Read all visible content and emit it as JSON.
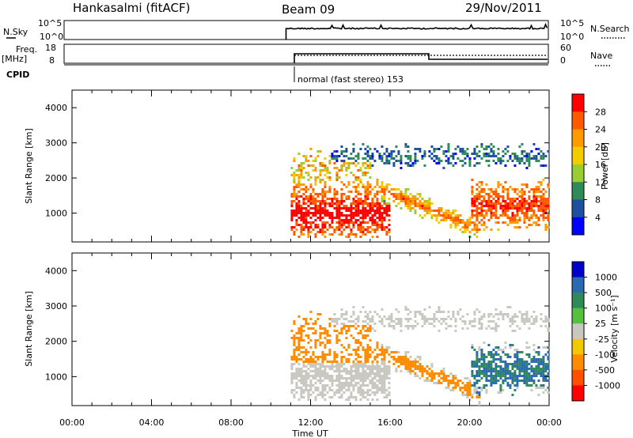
{
  "header": {
    "station": "Hankasalmi (fitACF)",
    "beam": "Beam 09",
    "date": "29/Nov/2011"
  },
  "strip_nsky": {
    "label": "N.Sky",
    "left_ticks": [
      "10^5",
      "10^0"
    ],
    "right_ticks": [
      "10^5",
      "10^0"
    ],
    "right_label": "N.Search"
  },
  "strip_freq": {
    "label_line1": "Freq.",
    "label_line2": "[MHz]",
    "left_ticks": [
      "18",
      "8"
    ],
    "right_ticks": [
      "60",
      "0"
    ],
    "right_label": "Nave"
  },
  "strip_cpid": {
    "label": "CPID",
    "mode_text": "normal (fast stereo) 153"
  },
  "chart_data": [
    {
      "type": "heatmap",
      "title": "",
      "xlabel": "Time UT",
      "ylabel": "Slant Range [km]",
      "xlim": [
        "00:00",
        "24:00"
      ],
      "ylim": [
        180,
        4500
      ],
      "x_ticks": [
        "00:00",
        "04:00",
        "08:00",
        "12:00",
        "16:00",
        "20:00",
        "00:00"
      ],
      "y_ticks": [
        1000,
        2000,
        3000,
        4000
      ],
      "data_start_ut": "11:00",
      "colorbar": {
        "label": "Power [dB]",
        "ticks": [
          "28",
          "24",
          "20",
          "16",
          "12",
          "8",
          "4"
        ],
        "colors": [
          "#ff0000",
          "#ff5a00",
          "#ff9a00",
          "#f2cc00",
          "#9acd32",
          "#2e8b57",
          "#1e50a0",
          "#0000ff"
        ]
      },
      "features": [
        {
          "name": "strong echo near range",
          "ut_start": 11.0,
          "ut_end": 16.0,
          "range_km": [
            400,
            1600
          ],
          "power_db": 28
        },
        {
          "name": "strong echo evening",
          "ut_start": 20.5,
          "ut_end": 24.0,
          "range_km": [
            800,
            1700
          ],
          "power_db": 28
        },
        {
          "name": "weak far echo",
          "ut_start": 14.0,
          "ut_end": 24.0,
          "range_km": [
            2400,
            2900
          ],
          "power_db": 4
        }
      ]
    },
    {
      "type": "heatmap",
      "title": "",
      "xlabel": "Time UT",
      "ylabel": "Slant Range [km]",
      "xlim": [
        "00:00",
        "24:00"
      ],
      "ylim": [
        180,
        4500
      ],
      "x_ticks": [
        "00:00",
        "04:00",
        "08:00",
        "12:00",
        "16:00",
        "20:00",
        "00:00"
      ],
      "y_ticks": [
        1000,
        2000,
        3000,
        4000
      ],
      "data_start_ut": "11:00",
      "colorbar": {
        "label": "Velocity [m s⁻¹]",
        "ticks": [
          "1000",
          "500",
          "100",
          "25",
          "-25",
          "-100",
          "-500",
          "-1000"
        ],
        "colors": [
          "#0000c8",
          "#2a6ab0",
          "#2e8b57",
          "#55c040",
          "#c8c8c0",
          "#f2c800",
          "#ff8c00",
          "#ff5000",
          "#ff0000"
        ]
      },
      "features": [
        {
          "name": "ground scatter",
          "ut_start": 11.0,
          "ut_end": 24.0,
          "range_km": [
            300,
            2600
          ],
          "velocity": 0
        },
        {
          "name": "orange flow band",
          "ut_start": 12.0,
          "ut_end": 20.0,
          "range_km": [
            900,
            1800
          ],
          "velocity": -100
        },
        {
          "name": "green flow region",
          "ut_start": 19.0,
          "ut_end": 24.0,
          "range_km": [
            300,
            2000
          ],
          "velocity": 200
        }
      ]
    }
  ]
}
